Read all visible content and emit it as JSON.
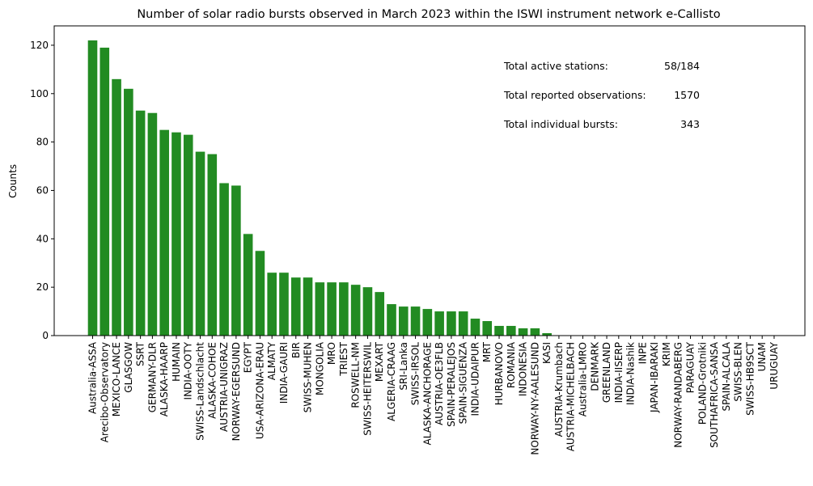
{
  "chart_data": {
    "type": "bar",
    "title": "Number of solar radio bursts observed in March 2023 within the ISWI instrument network e-Callisto",
    "xlabel": "",
    "ylabel": "Counts",
    "ylim": [
      0,
      128
    ],
    "yticks": [
      "0",
      "20",
      "40",
      "60",
      "80",
      "100",
      "120"
    ],
    "ytick_values": [
      0,
      20,
      40,
      60,
      80,
      100,
      120
    ],
    "bar_color": "#228b22",
    "grid": false,
    "categories": [
      "Australia-ASSA",
      "Arecibo-Observatory",
      "MEXICO-LANCE",
      "GLASGOW",
      "SSRT",
      "GERMANY-DLR",
      "ALASKA-HAARP",
      "HUMAIN",
      "INDIA-OOTY",
      "SWISS-Landschlacht",
      "ALASKA-COHOE",
      "AUSTRIA-UNIGRAZ",
      "NORWAY-EGERSUND",
      "EGYPT",
      "USA-ARIZONA-ERAU",
      "ALMATY",
      "INDIA-GAURI",
      "BIR",
      "SWISS-MUHEN",
      "MONGOLIA",
      "MRO",
      "TRIEST",
      "ROSWELL-NM",
      "SWISS-HEITERSWIL",
      "MEXART",
      "ALGERIA-CRAAG",
      "SRI-Lanka",
      "SWISS-IRSOL",
      "ALASKA-ANCHORAGE",
      "AUSTRIA-OE3FLB",
      "SPAIN-PERALEJOS",
      "SPAIN-SIGUENZA",
      "INDIA-UDAIPUR",
      "MRT",
      "HURBANOVO",
      "ROMANIA",
      "INDONESIA",
      "NORWAY-NY-AALESUND",
      "KASI",
      "AUSTRIA-Krumbach",
      "AUSTRIA-MICHELBACH",
      "Australia-LMRO",
      "DENMARK",
      "GREENLAND",
      "INDIA-IISERP",
      "INDIA-Nashik",
      "INPE",
      "JAPAN-IBARAKI",
      "KRIM",
      "NORWAY-RANDABERG",
      "PARAGUAY",
      "POLAND-Grotniki",
      "SOUTHAFRICA-SANSA",
      "SPAIN-ALCALA",
      "SWISS-BLEN",
      "SWISS-HB9SCT",
      "UNAM",
      "URUGUAY"
    ],
    "values": [
      122,
      119,
      106,
      102,
      93,
      92,
      85,
      84,
      83,
      76,
      75,
      63,
      62,
      42,
      35,
      26,
      26,
      24,
      24,
      22,
      22,
      22,
      21,
      20,
      18,
      13,
      12,
      12,
      11,
      10,
      10,
      10,
      7,
      6,
      4,
      4,
      3,
      3,
      1,
      0,
      0,
      0,
      0,
      0,
      0,
      0,
      0,
      0,
      0,
      0,
      0,
      0,
      0,
      0,
      0,
      0,
      0,
      0
    ],
    "annotations": [
      {
        "label": "Total active stations:",
        "value": "58/184"
      },
      {
        "label": "Total reported observations:",
        "value": "1570"
      },
      {
        "label": "Total individual bursts:",
        "value": "343"
      }
    ]
  }
}
